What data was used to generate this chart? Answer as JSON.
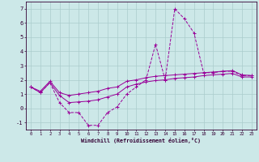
{
  "xlabel": "Windchill (Refroidissement éolien,°C)",
  "hours": [
    0,
    1,
    2,
    3,
    4,
    5,
    6,
    7,
    8,
    9,
    10,
    11,
    12,
    13,
    14,
    15,
    16,
    17,
    18,
    19,
    20,
    21,
    22,
    23
  ],
  "jagged": [
    1.5,
    1.1,
    1.8,
    0.4,
    -0.3,
    -0.3,
    -1.2,
    -1.2,
    -0.3,
    0.1,
    1.0,
    1.5,
    2.0,
    4.5,
    2.0,
    7.0,
    6.3,
    5.3,
    2.5,
    2.5,
    2.6,
    2.6,
    2.3,
    2.3
  ],
  "upper": [
    1.5,
    1.2,
    1.9,
    1.1,
    0.9,
    1.0,
    1.1,
    1.2,
    1.4,
    1.5,
    1.9,
    2.0,
    2.15,
    2.25,
    2.3,
    2.35,
    2.4,
    2.45,
    2.5,
    2.55,
    2.6,
    2.65,
    2.35,
    2.3
  ],
  "lower": [
    1.5,
    1.1,
    1.8,
    0.9,
    0.4,
    0.45,
    0.5,
    0.6,
    0.8,
    1.0,
    1.5,
    1.7,
    1.85,
    1.95,
    2.0,
    2.1,
    2.15,
    2.2,
    2.3,
    2.35,
    2.4,
    2.45,
    2.2,
    2.2
  ],
  "bg_color": "#cce8e8",
  "grid_color": "#aacccc",
  "line_color": "#990099",
  "ylim": [
    -1.5,
    7.5
  ],
  "yticks": [
    -1,
    0,
    1,
    2,
    3,
    4,
    5,
    6,
    7
  ],
  "xticks": [
    0,
    1,
    2,
    3,
    4,
    5,
    6,
    7,
    8,
    9,
    10,
    11,
    12,
    13,
    14,
    15,
    16,
    17,
    18,
    19,
    20,
    21,
    22,
    23
  ],
  "xlabel_color": "#330033",
  "tick_color": "#330033",
  "spine_color": "#330033"
}
